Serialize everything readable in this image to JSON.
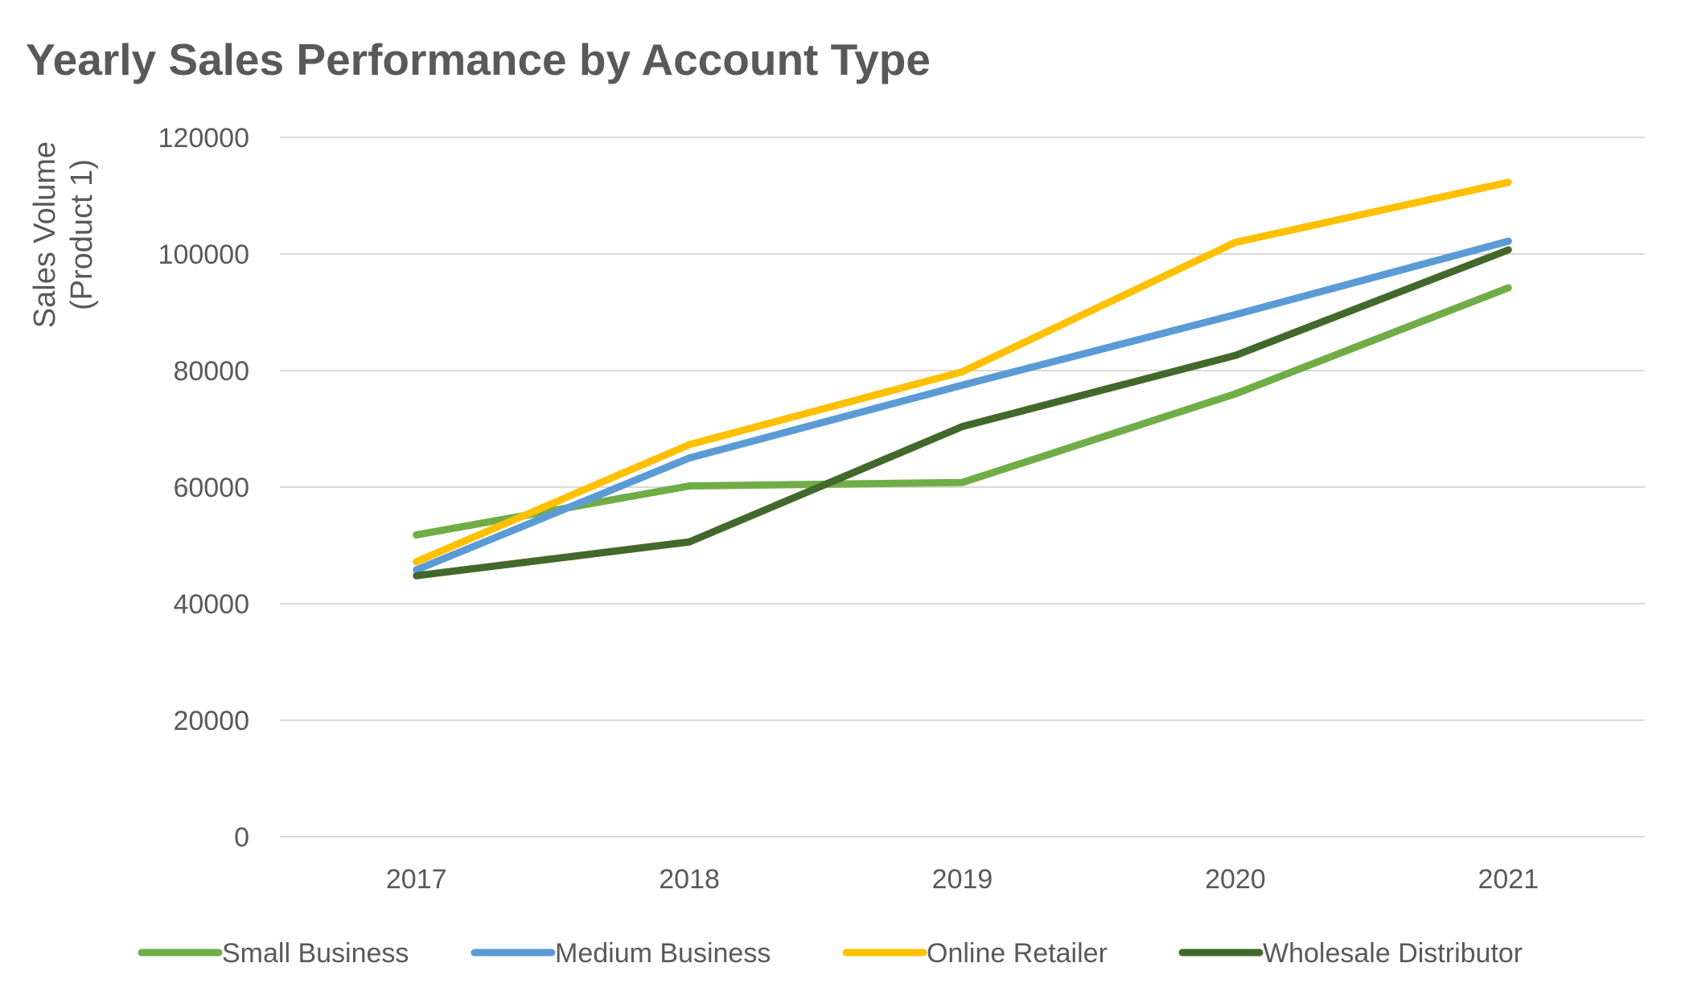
{
  "chart_data": {
    "type": "line",
    "title": "Yearly Sales Performance by Account Type",
    "xlabel": "",
    "ylabel_lines": [
      "Sales Volume",
      "(Product 1)"
    ],
    "categories": [
      "2017",
      "2018",
      "2019",
      "2020",
      "2021"
    ],
    "ylim": [
      0,
      120000
    ],
    "yticks": [
      0,
      20000,
      40000,
      60000,
      80000,
      100000,
      120000
    ],
    "grid": true,
    "legend_position": "bottom",
    "series": [
      {
        "name": "Small Business",
        "color": "#70AD47",
        "values": [
          51800,
          60200,
          60800,
          76000,
          94200
        ]
      },
      {
        "name": "Medium Business",
        "color": "#5B9BD5",
        "values": [
          45800,
          65000,
          77500,
          89600,
          102200
        ]
      },
      {
        "name": "Online Retailer",
        "color": "#FFC000",
        "values": [
          47200,
          67300,
          79800,
          102000,
          112300
        ]
      },
      {
        "name": "Wholesale Distributor",
        "color": "#43682B",
        "values": [
          44800,
          50600,
          70400,
          82600,
          100700
        ]
      }
    ]
  }
}
